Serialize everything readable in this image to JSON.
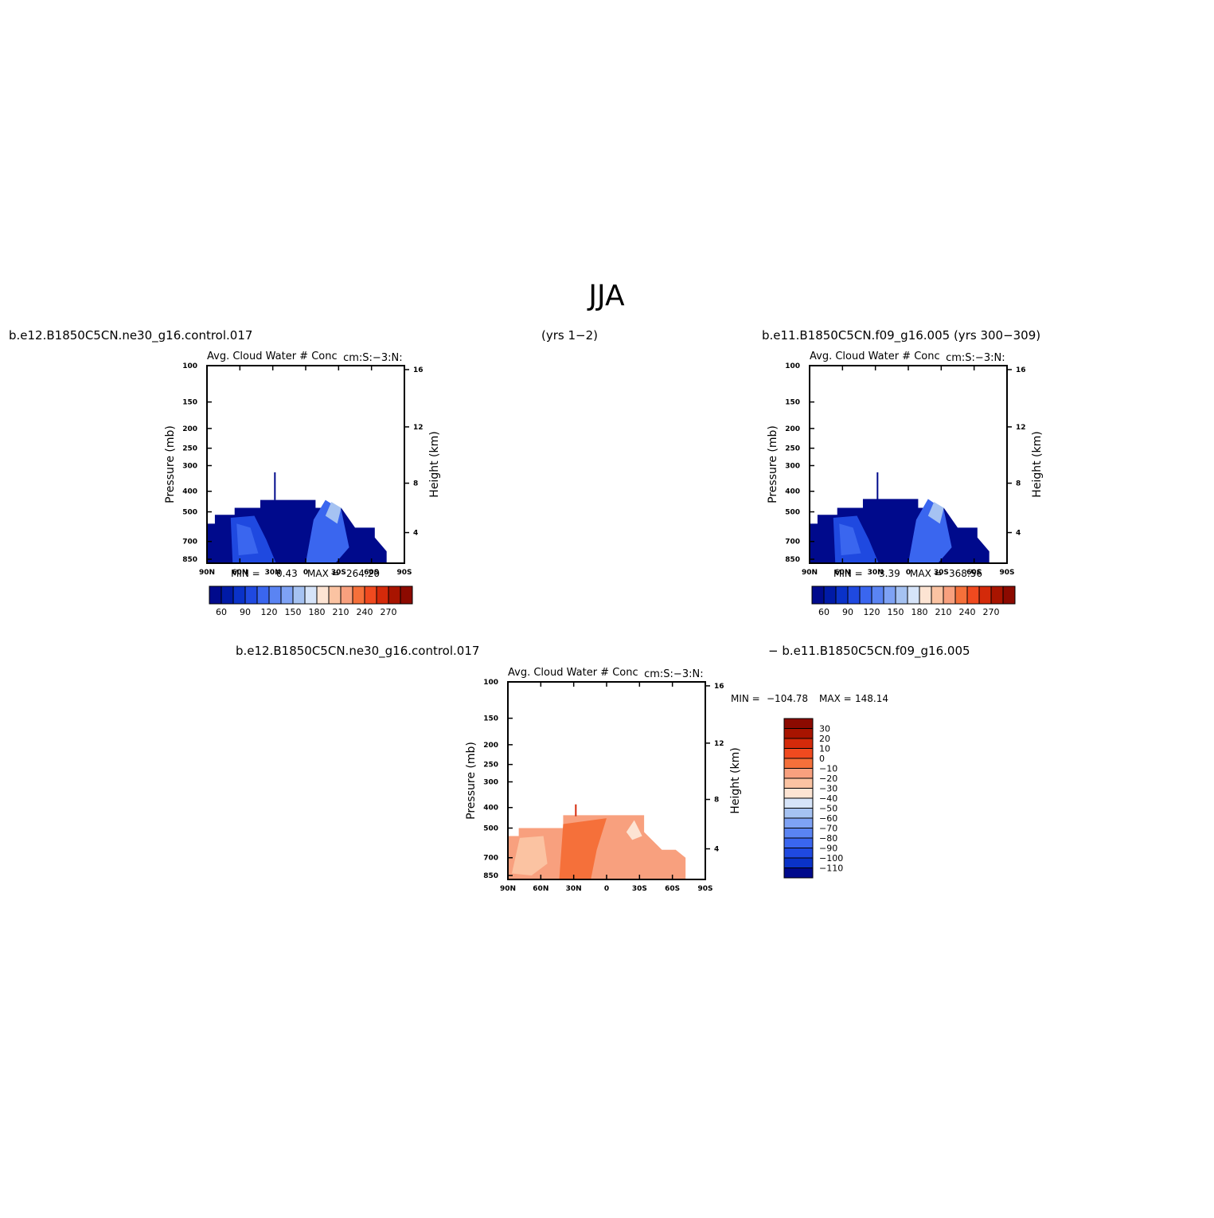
{
  "page": {
    "title": "JJA",
    "left_case_label": "b.e12.B1850C5CN.ne30_g16.control.017",
    "left_years_label": "(yrs 1−2)",
    "right_case_label": "b.e11.B1850C5CN.f09_g16.005 (yrs 300−309)",
    "diff_case_a_label": "b.e12.B1850C5CN.ne30_g16.control.017",
    "diff_case_b_label": "− b.e11.B1850C5CN.f09_g16.005"
  },
  "colors": {
    "dark_blue": "#000a8c",
    "mid_blue": "#2a56e6",
    "light_blue": "#a5c2f2",
    "white": "#ffffff",
    "light_orange": "#fbc3a2",
    "orange": "#f5703a",
    "dark_red": "#8c0a00"
  },
  "chart_data": [
    {
      "type": "heatmap",
      "panel": "left",
      "title": "Avg. Cloud Water # Conc",
      "subtitle": "cm:S:−3:N:",
      "ylabel": "Pressure (mb)",
      "y2label": "Height (km)",
      "x_ticks": [
        "90N",
        "60N",
        "30N",
        "0",
        "30S",
        "60S",
        "90S"
      ],
      "y_ticks": [
        "100",
        "150",
        "200",
        "250",
        "300",
        "400",
        "500",
        "700",
        "850"
      ],
      "y2_ticks": [
        "16",
        "12",
        "8",
        "4"
      ],
      "min_label": "MIN =",
      "min_value": "0.43",
      "max_label": "MAX =",
      "max_value": "264.20",
      "colorbar_labels": [
        "60",
        "90",
        "120",
        "150",
        "180",
        "210",
        "240",
        "270"
      ]
    },
    {
      "type": "heatmap",
      "panel": "right",
      "title": "Avg. Cloud Water # Conc",
      "subtitle": "cm:S:−3:N:",
      "ylabel": "Pressure (mb)",
      "y2label": "Height (km)",
      "x_ticks": [
        "90N",
        "60N",
        "30N",
        "0",
        "30S",
        "60S",
        "90S"
      ],
      "y_ticks": [
        "100",
        "150",
        "200",
        "250",
        "300",
        "400",
        "500",
        "700",
        "850"
      ],
      "y2_ticks": [
        "16",
        "12",
        "8",
        "4"
      ],
      "min_label": "MIN =",
      "min_value": "3.39",
      "max_label": "MAX =",
      "max_value": "368.56",
      "colorbar_labels": [
        "60",
        "90",
        "120",
        "150",
        "180",
        "210",
        "240",
        "270"
      ]
    },
    {
      "type": "heatmap",
      "panel": "difference",
      "title": "Avg. Cloud Water # Conc",
      "subtitle": "cm:S:−3:N:",
      "ylabel": "Pressure (mb)",
      "y2label": "Height (km)",
      "x_ticks": [
        "90N",
        "60N",
        "30N",
        "0",
        "30S",
        "60S",
        "90S"
      ],
      "y_ticks": [
        "100",
        "150",
        "200",
        "250",
        "300",
        "400",
        "500",
        "700",
        "850"
      ],
      "y2_ticks": [
        "16",
        "12",
        "8",
        "4"
      ],
      "min_label": "MIN =",
      "min_value": "−104.78",
      "max_label": "MAX =",
      "max_value": "148.14",
      "colorbar_labels": [
        "30",
        "20",
        "10",
        "0",
        "−10",
        "−20",
        "−30",
        "−40",
        "−50",
        "−60",
        "−70",
        "−80",
        "−90",
        "−100",
        "−110"
      ]
    }
  ]
}
